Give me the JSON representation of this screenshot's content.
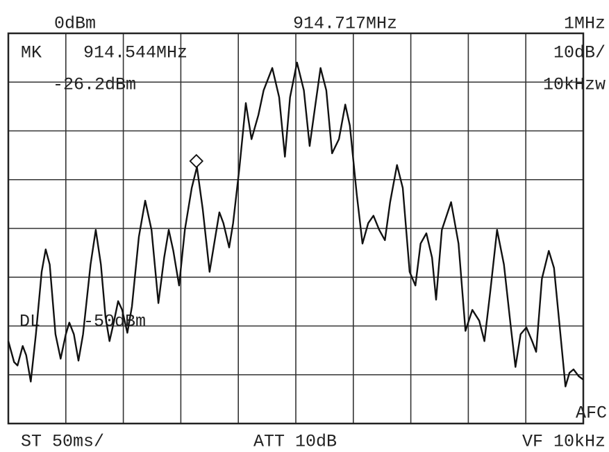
{
  "chart_data": {
    "type": "line",
    "reference_level": "0dBm",
    "center_frequency": "914.717MHz",
    "span": "1MHz",
    "scale": "10dB/",
    "rbw": "10kHzw",
    "sweep_time": "ST 50ms/",
    "attenuation": "ATT 10dB",
    "video_filter": "VF 10kHz",
    "afc": "AFC",
    "display_line": {
      "label": "DL",
      "level": "-50dBm"
    },
    "marker": {
      "label": "MK",
      "x_label": "914.544MHz",
      "value_label": "-26.2dBm",
      "x": 914.544,
      "value": -26.2
    },
    "xlim": [
      914.217,
      915.217
    ],
    "ylim": [
      -80,
      0
    ],
    "grid": true,
    "series": [
      {
        "color": "#111111",
        "x": [
          914.217,
          914.227,
          914.233,
          914.242,
          914.248,
          914.256,
          914.265,
          914.275,
          914.282,
          914.289,
          914.299,
          914.308,
          914.317,
          914.323,
          914.331,
          914.339,
          914.347,
          914.36,
          914.369,
          914.378,
          914.386,
          914.393,
          914.401,
          914.408,
          914.415,
          914.424,
          914.432,
          914.444,
          914.455,
          914.466,
          914.478,
          914.488,
          914.496,
          914.504,
          914.514,
          914.524,
          914.536,
          914.545,
          914.555,
          914.567,
          914.577,
          914.584,
          914.591,
          914.601,
          914.608,
          914.619,
          914.63,
          914.64,
          914.652,
          914.661,
          914.676,
          914.688,
          914.698,
          914.707,
          914.719,
          914.731,
          914.741,
          914.751,
          914.76,
          914.77,
          914.78,
          914.792,
          914.803,
          914.811,
          914.823,
          914.833,
          914.843,
          914.852,
          914.862,
          914.872,
          914.881,
          914.893,
          914.903,
          914.915,
          914.925,
          914.934,
          914.944,
          914.954,
          914.961,
          914.971,
          914.987,
          915.0,
          915.012,
          915.024,
          915.036,
          915.045,
          915.055,
          915.067,
          915.079,
          915.091,
          915.099,
          915.108,
          915.118,
          915.128,
          915.135,
          915.145,
          915.157,
          915.166,
          915.176,
          915.186,
          915.193,
          915.2,
          915.209,
          915.217
        ],
        "values": [
          -63.1,
          -67.4,
          -68.1,
          -64.1,
          -66.0,
          -71.4,
          -61.7,
          -48.9,
          -44.3,
          -47.4,
          -61.7,
          -66.7,
          -61.7,
          -59.3,
          -61.7,
          -67.1,
          -61.7,
          -47.4,
          -40.3,
          -47.4,
          -58.1,
          -63.1,
          -58.9,
          -54.9,
          -56.7,
          -61.4,
          -56.0,
          -41.7,
          -34.3,
          -40.3,
          -55.3,
          -46.0,
          -40.3,
          -44.6,
          -51.7,
          -40.3,
          -31.7,
          -27.4,
          -36.0,
          -48.9,
          -41.7,
          -36.7,
          -38.9,
          -43.9,
          -38.9,
          -27.4,
          -14.3,
          -21.7,
          -16.7,
          -11.7,
          -7.1,
          -13.1,
          -25.3,
          -13.1,
          -6.0,
          -11.7,
          -23.1,
          -14.6,
          -7.1,
          -11.7,
          -24.6,
          -21.7,
          -14.6,
          -18.9,
          -33.1,
          -43.1,
          -38.9,
          -37.4,
          -40.3,
          -42.4,
          -34.6,
          -27.0,
          -31.7,
          -48.9,
          -51.7,
          -43.1,
          -41.0,
          -46.0,
          -54.6,
          -40.3,
          -34.6,
          -43.1,
          -61.0,
          -56.7,
          -58.9,
          -63.1,
          -53.1,
          -40.3,
          -47.4,
          -60.3,
          -68.4,
          -61.7,
          -60.3,
          -63.1,
          -65.3,
          -50.3,
          -44.6,
          -48.1,
          -60.3,
          -72.4,
          -69.6,
          -68.9,
          -70.3,
          -71.0
        ]
      }
    ]
  }
}
